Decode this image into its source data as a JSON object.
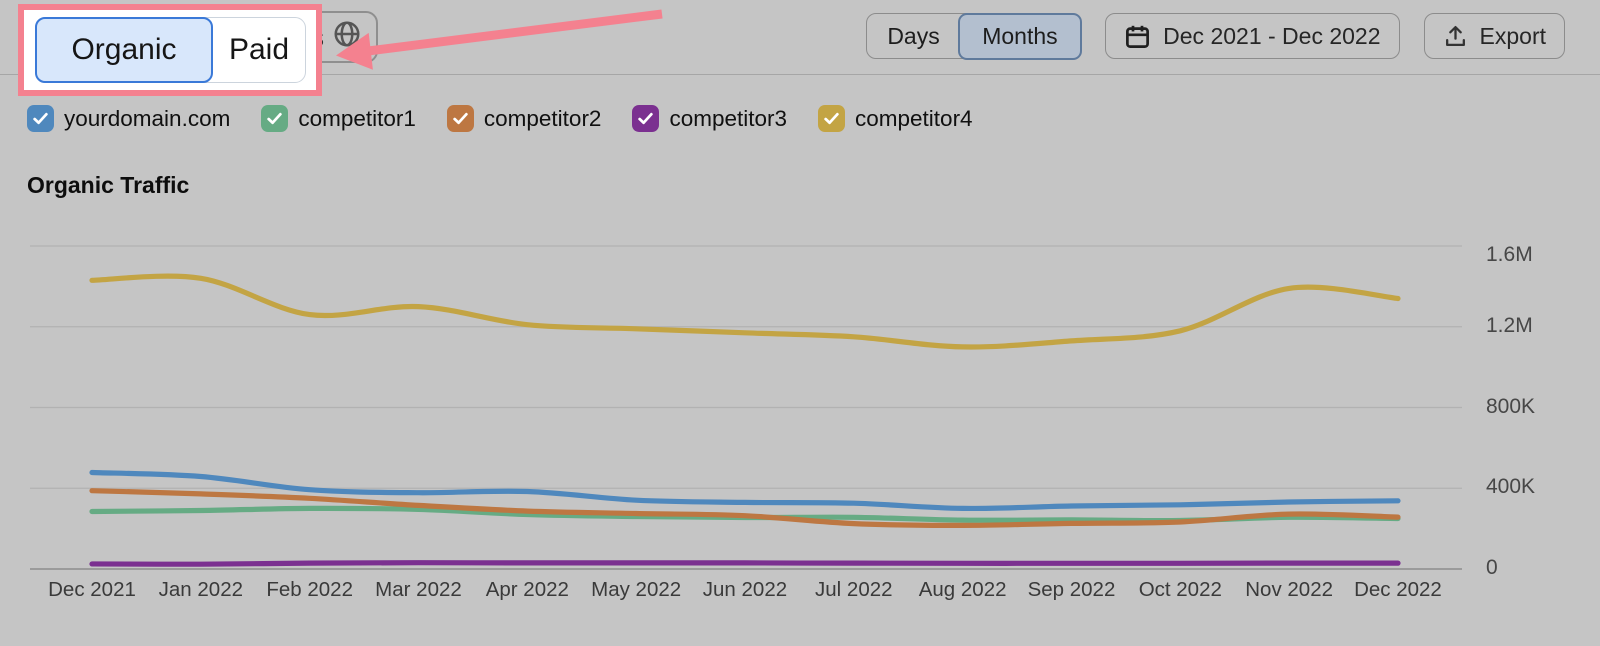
{
  "header": {
    "traffic_type_toggle": {
      "options": [
        "Organic",
        "Paid"
      ],
      "selected": "Organic"
    },
    "hidden_button": {
      "partial_text": "s",
      "icon": "globe-icon"
    },
    "granularity_toggle": {
      "options": [
        "Days",
        "Months"
      ],
      "selected": "Months"
    },
    "date_range_label": "Dec 2021 - Dec 2022",
    "export_label": "Export",
    "highlight_color": "#f4818f"
  },
  "legend": {
    "items": [
      {
        "label": "yourdomain.com",
        "checked": true,
        "color": "#4f88bd"
      },
      {
        "label": "competitor1",
        "checked": true,
        "color": "#66ab84"
      },
      {
        "label": "competitor2",
        "checked": true,
        "color": "#bd7742"
      },
      {
        "label": "competitor3",
        "checked": true,
        "color": "#7b3090"
      },
      {
        "label": "competitor4",
        "checked": true,
        "color": "#c3a444"
      }
    ]
  },
  "chart_data": {
    "type": "line",
    "title": "Organic Traffic",
    "x": [
      "Dec 2021",
      "Jan 2022",
      "Feb 2022",
      "Mar 2022",
      "Apr 2022",
      "May 2022",
      "Jun 2022",
      "Jul 2022",
      "Aug 2022",
      "Sep 2022",
      "Oct 2022",
      "Nov 2022",
      "Dec 2022"
    ],
    "ylim": [
      0,
      1600000
    ],
    "yticks": [
      {
        "value": 0,
        "label": "0"
      },
      {
        "value": 400000,
        "label": "400K"
      },
      {
        "value": 800000,
        "label": "800K"
      },
      {
        "value": 1200000,
        "label": "1.2M"
      },
      {
        "value": 1600000,
        "label": "1.6M"
      }
    ],
    "grid": true,
    "legend_position": "top",
    "series": [
      {
        "name": "yourdomain.com",
        "color": "#4f88bd",
        "values": [
          478000,
          458000,
          393000,
          378000,
          384000,
          341000,
          330000,
          326000,
          300000,
          312000,
          318000,
          332000,
          338000
        ]
      },
      {
        "name": "competitor1",
        "color": "#66ab84",
        "values": [
          285000,
          290000,
          300000,
          295000,
          270000,
          260000,
          255000,
          256000,
          242000,
          243000,
          240000,
          256000,
          250000
        ]
      },
      {
        "name": "competitor2",
        "color": "#bd7742",
        "values": [
          388000,
          372000,
          350000,
          315000,
          287000,
          275000,
          264000,
          225000,
          216000,
          226000,
          233000,
          272000,
          257000
        ]
      },
      {
        "name": "competitor3",
        "color": "#7b3090",
        "values": [
          25000,
          24000,
          29000,
          31000,
          30000,
          30000,
          30000,
          29000,
          28000,
          28000,
          28000,
          29000,
          29000
        ]
      },
      {
        "name": "competitor4",
        "color": "#c3a444",
        "values": [
          1430000,
          1440000,
          1260000,
          1300000,
          1210000,
          1190000,
          1170000,
          1150000,
          1100000,
          1130000,
          1180000,
          1390000,
          1340000
        ]
      }
    ],
    "colors": {
      "grid": "#b2b2b2",
      "zero_line": "#9b9b9b",
      "axis_text": "#474747"
    }
  }
}
